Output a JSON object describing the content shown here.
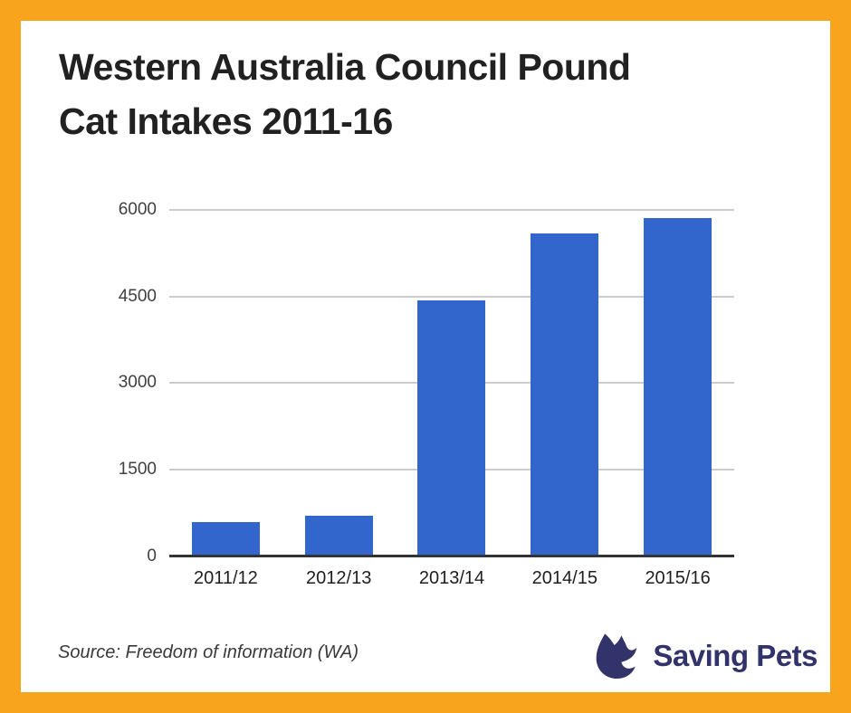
{
  "title": {
    "line1": "Western Australia Council Pound",
    "line2": "Cat Intakes 2011-16"
  },
  "chart_data": {
    "type": "bar",
    "title": "Western Australia Council Pound Cat Intakes 2011-16",
    "categories": [
      "2011/12",
      "2012/13",
      "2013/14",
      "2014/15",
      "2015/16"
    ],
    "values": [
      600,
      710,
      4430,
      5590,
      5860
    ],
    "xlabel": "",
    "ylabel": "",
    "ylim": [
      0,
      6000
    ],
    "yticks": [
      0,
      1500,
      3000,
      4500,
      6000
    ],
    "grid": true,
    "legend": "none",
    "bar_color": "#3366cc"
  },
  "footer": {
    "source": "Source: Freedom of information (WA)",
    "logo_text": "Saving Pets"
  },
  "icons": {
    "logo_icon": "cat-icon"
  },
  "colors": {
    "frame_orange": "#f8a41d",
    "bar_blue": "#3366cc",
    "logo_navy": "#32336a",
    "title_text": "#212121",
    "gridline": "#cccccc",
    "axis_line": "#333333",
    "tick_text": "#404040",
    "source_text": "#3a3a3a"
  }
}
